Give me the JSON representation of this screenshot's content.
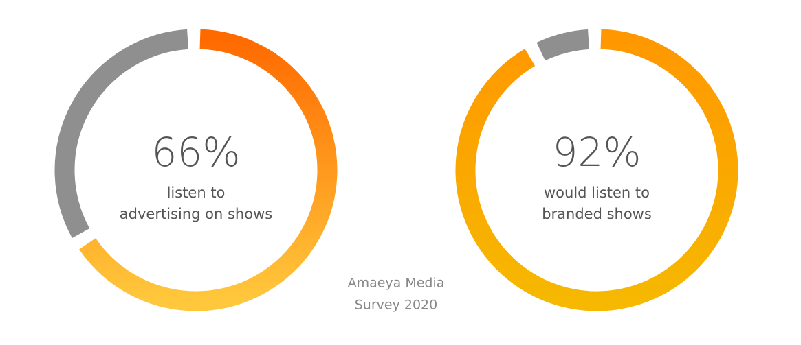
{
  "chart_data": [
    {
      "type": "donut",
      "values": [
        66
      ],
      "value_labels": [
        "66%"
      ],
      "label_lines": [
        "listen to",
        "advertising on shows"
      ],
      "gradient": [
        "#ff6a00",
        "#ffc83c"
      ],
      "track_color": "#8f8f8f"
    },
    {
      "type": "donut",
      "values": [
        92
      ],
      "value_labels": [
        "92%"
      ],
      "label_lines": [
        "would listen to",
        "branded shows"
      ],
      "gradient": [
        "#ff9800",
        "#f6b800"
      ],
      "track_color": "#8f8f8f"
    }
  ],
  "caption_lines": [
    "Amaeya Media",
    "Survey 2020"
  ]
}
